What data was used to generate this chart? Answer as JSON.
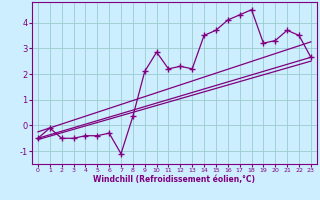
{
  "x_data": [
    0,
    1,
    2,
    3,
    4,
    5,
    6,
    7,
    8,
    9,
    10,
    11,
    12,
    13,
    14,
    15,
    16,
    17,
    18,
    19,
    20,
    21,
    22,
    23
  ],
  "y_scatter": [
    -0.5,
    -0.1,
    -0.5,
    -0.5,
    -0.4,
    -0.4,
    -0.3,
    -1.1,
    0.35,
    2.1,
    2.85,
    2.2,
    2.3,
    2.2,
    3.5,
    3.7,
    4.1,
    4.3,
    4.5,
    3.2,
    3.3,
    3.7,
    3.5,
    2.65
  ],
  "trend_line1_x": [
    0,
    23
  ],
  "trend_line1_y": [
    -0.5,
    2.65
  ],
  "trend_line2_x": [
    0,
    23
  ],
  "trend_line2_y": [
    -0.55,
    2.5
  ],
  "trend_line3_x": [
    0,
    23
  ],
  "trend_line3_y": [
    -0.25,
    3.25
  ],
  "bg_color": "#cceeff",
  "line_color": "#800080",
  "grid_color": "#99cccc",
  "xlabel": "Windchill (Refroidissement éolien,°C)",
  "xlim": [
    -0.5,
    23.5
  ],
  "ylim": [
    -1.5,
    4.8
  ],
  "yticks": [
    -1,
    0,
    1,
    2,
    3,
    4
  ],
  "xticks": [
    0,
    1,
    2,
    3,
    4,
    5,
    6,
    7,
    8,
    9,
    10,
    11,
    12,
    13,
    14,
    15,
    16,
    17,
    18,
    19,
    20,
    21,
    22,
    23
  ],
  "xlabel_fontsize": 5.5,
  "ytick_fontsize": 6.0,
  "xtick_fontsize": 4.5
}
